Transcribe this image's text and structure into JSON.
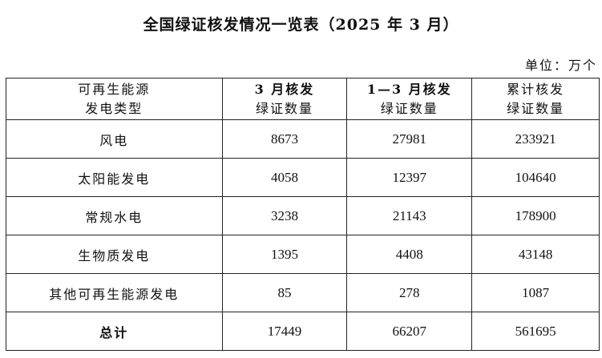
{
  "title": "全国绿证核发情况一览表（2025 年 3 月）",
  "unit": "单位：万个",
  "table": {
    "headers": [
      [
        "可再生能源",
        "发电类型"
      ],
      [
        "3 月核发",
        "绿证数量"
      ],
      [
        "1—3 月核发",
        "绿证数量"
      ],
      [
        "累计核发",
        "绿证数量"
      ]
    ],
    "rows": [
      {
        "type": "风电",
        "march": "8673",
        "jan_mar": "27981",
        "cumulative": "233921"
      },
      {
        "type": "太阳能发电",
        "march": "4058",
        "jan_mar": "12397",
        "cumulative": "104640"
      },
      {
        "type": "常规水电",
        "march": "3238",
        "jan_mar": "21143",
        "cumulative": "178900"
      },
      {
        "type": "生物质发电",
        "march": "1395",
        "jan_mar": "4408",
        "cumulative": "43148"
      },
      {
        "type": "其他可再生能源发电",
        "march": "85",
        "jan_mar": "278",
        "cumulative": "1087"
      }
    ],
    "total": {
      "type": "总计",
      "march": "17449",
      "jan_mar": "66207",
      "cumulative": "561695"
    }
  }
}
